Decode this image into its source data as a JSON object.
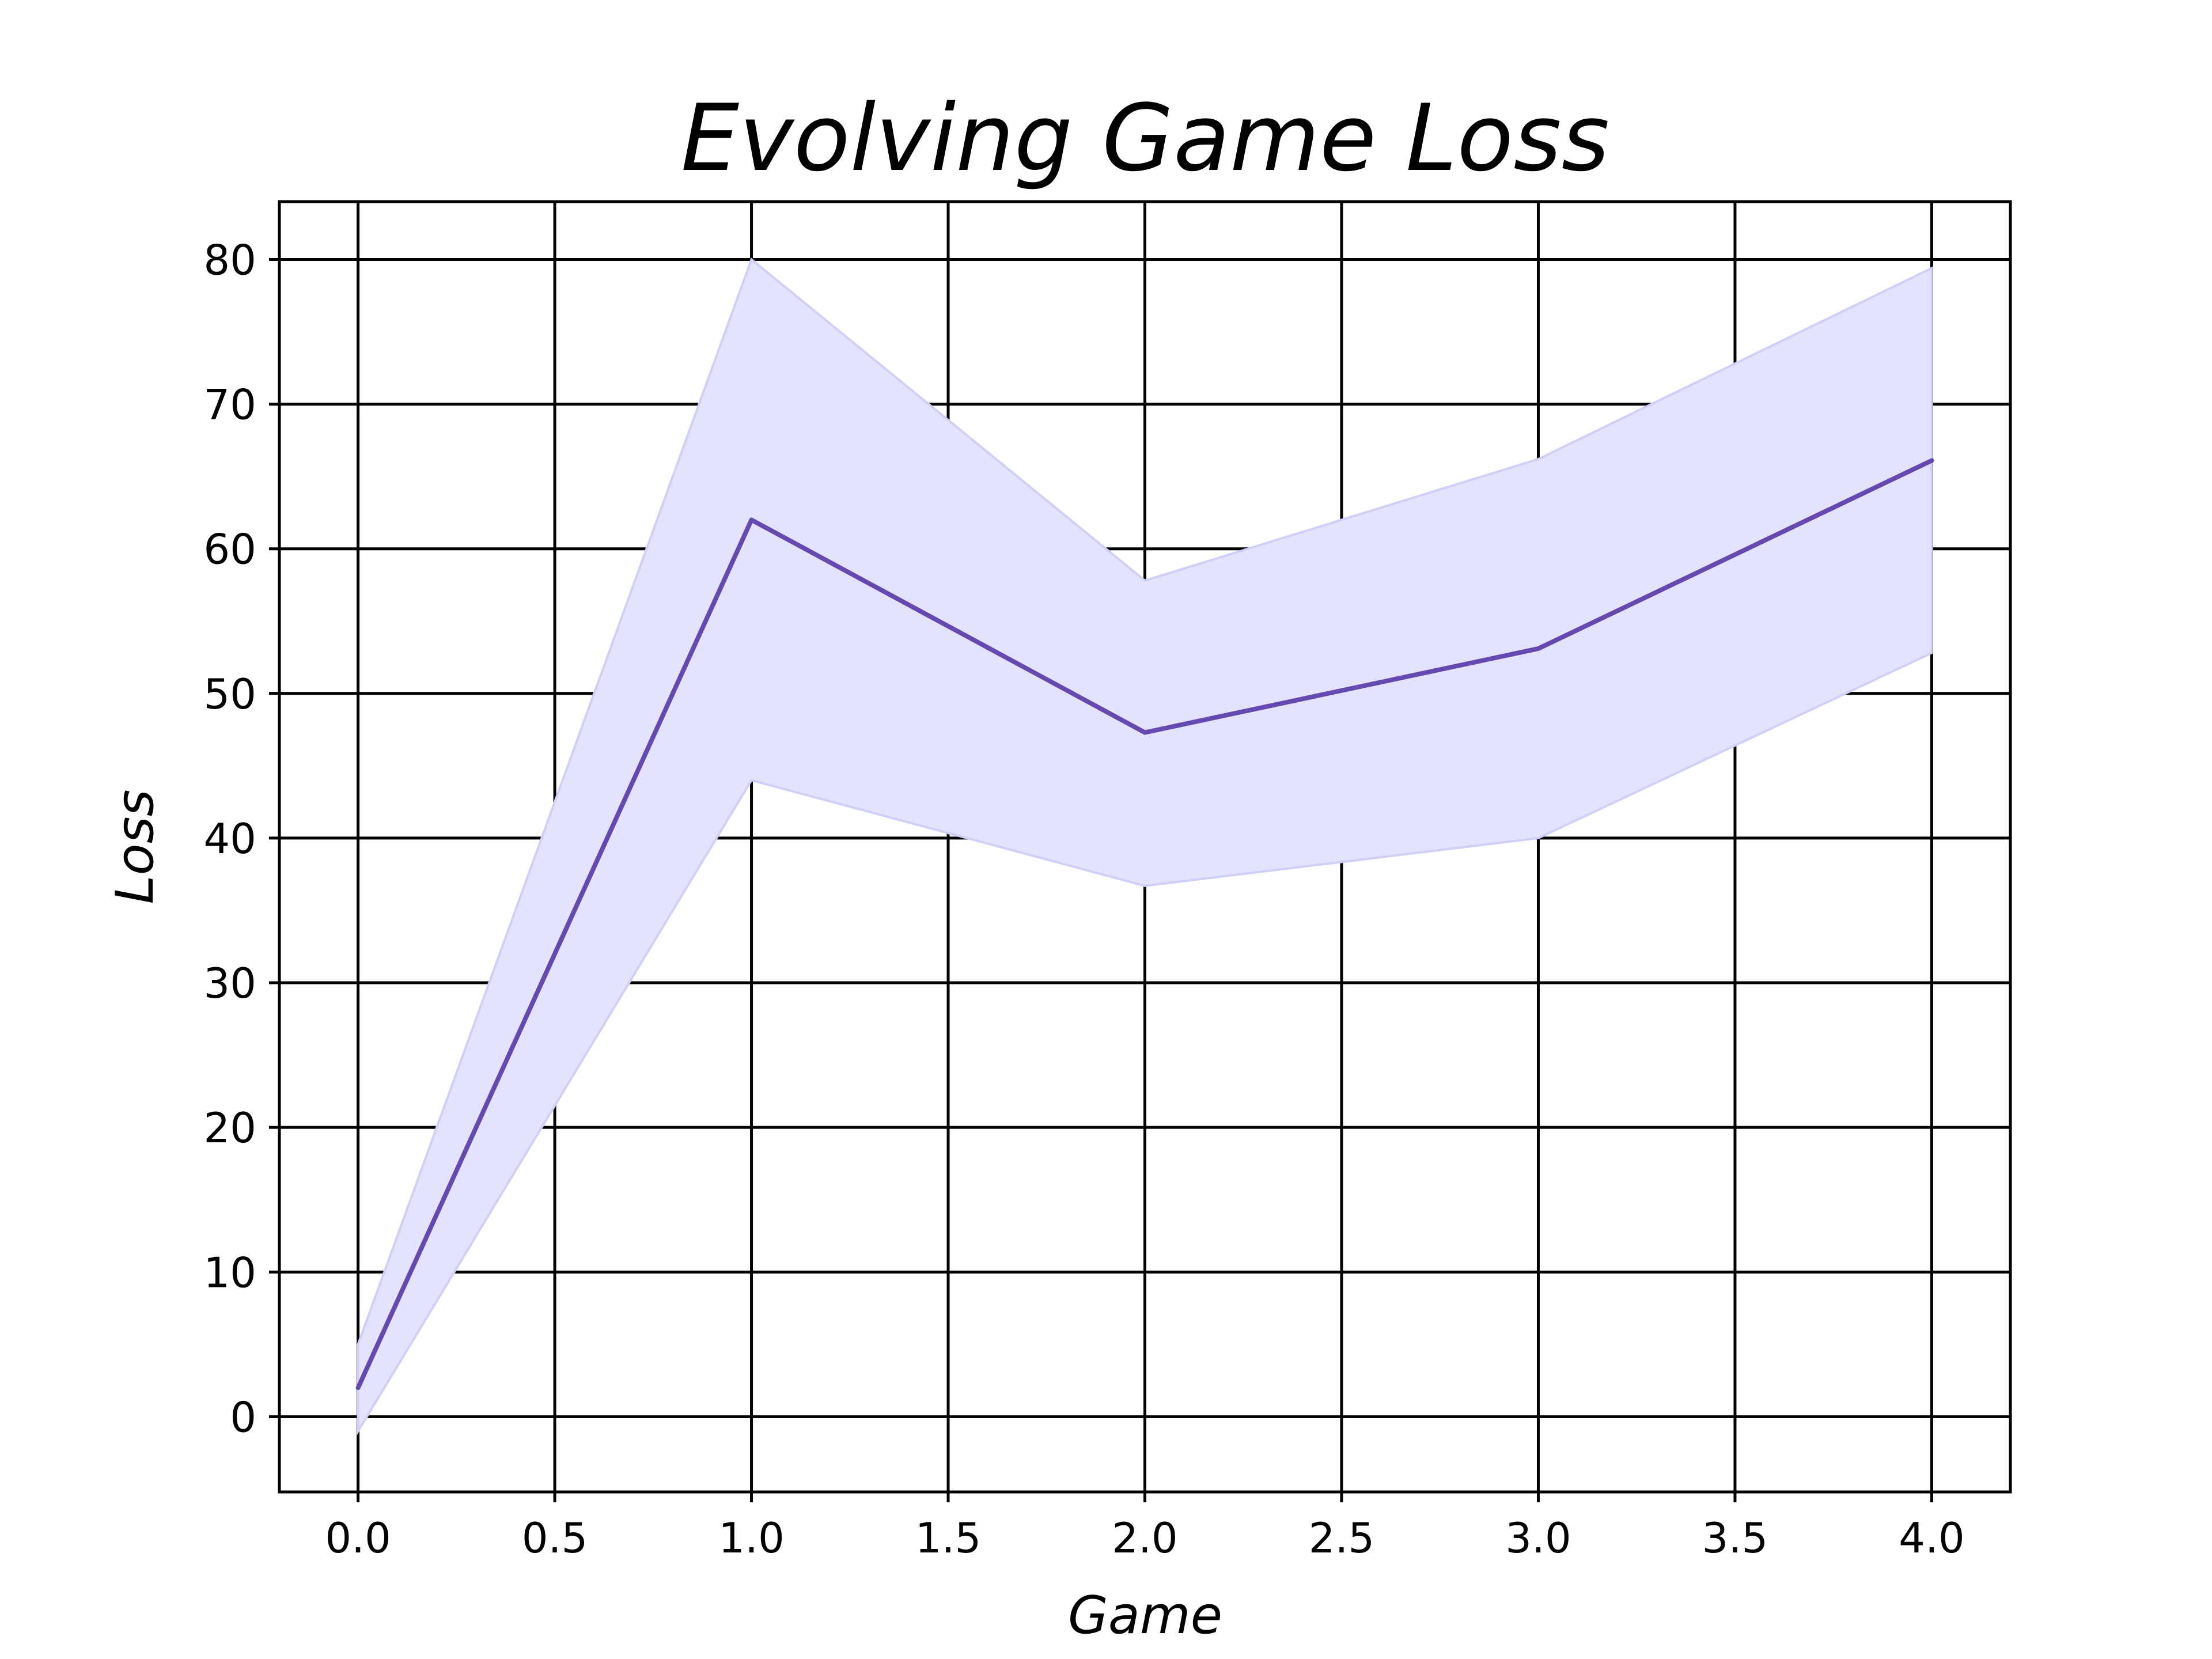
{
  "chart_data": {
    "type": "line",
    "title": "Evolving Game Loss",
    "xlabel": "Game",
    "ylabel": "Loss",
    "xlim": [
      -0.2,
      4.2
    ],
    "ylim": [
      -5.2,
      84
    ],
    "x_ticks": [
      0.0,
      0.5,
      1.0,
      1.5,
      2.0,
      2.5,
      3.0,
      3.5,
      4.0
    ],
    "x_tick_labels": [
      "0.0",
      "0.5",
      "1.0",
      "1.5",
      "2.0",
      "2.5",
      "3.0",
      "3.5",
      "4.0"
    ],
    "y_ticks": [
      0,
      10,
      20,
      30,
      40,
      50,
      60,
      70,
      80
    ],
    "y_tick_labels": [
      "0",
      "10",
      "20",
      "30",
      "40",
      "50",
      "60",
      "70",
      "80"
    ],
    "grid": true,
    "series": [
      {
        "x": [
          0,
          1,
          2,
          3,
          4
        ],
        "y": [
          2.0,
          62.0,
          47.3,
          53.1,
          66.1
        ],
        "lower": [
          -1.0,
          44.0,
          36.7,
          40.0,
          52.8
        ],
        "upper": [
          5.0,
          80.0,
          57.8,
          66.2,
          79.4
        ]
      }
    ],
    "colors": {
      "line": "#6549b0",
      "band": "#e3e3fd",
      "band_edge": "#cfcff8",
      "grid": "#000000",
      "axes": "#000000"
    }
  }
}
